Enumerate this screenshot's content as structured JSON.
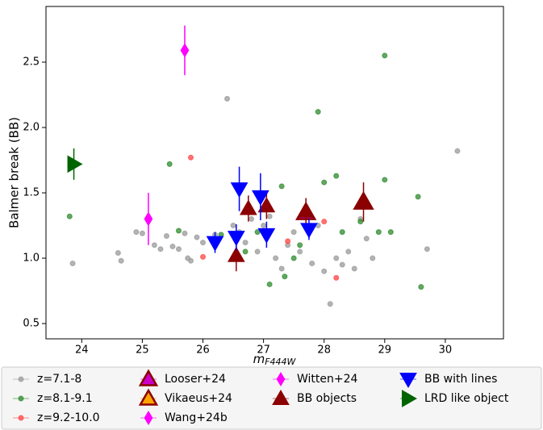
{
  "chart_data": {
    "type": "scatter",
    "xlabel": "m",
    "xlabel_sub": "F444W",
    "ylabel": "Balmer break (BB)",
    "xlim": [
      23.41,
      30.96
    ],
    "ylim": [
      0.383,
      2.926
    ],
    "xticks": [
      24,
      25,
      26,
      27,
      28,
      29,
      30
    ],
    "yticks": [
      0.5,
      {
        "value": 1.0,
        "label": "1.0"
      },
      1.5,
      {
        "value": 2.0,
        "label": "2.0"
      },
      2.5
    ],
    "legend": "bottom",
    "series": [
      {
        "name": "z=7.1-8",
        "color": "#999999",
        "marker": "circle",
        "size": 3,
        "x": [
          23.85,
          24.6,
          24.65,
          24.9,
          25.0,
          25.2,
          25.3,
          25.4,
          25.5,
          25.6,
          25.7,
          25.75,
          25.8,
          25.9,
          26.0,
          26.2,
          26.4,
          26.5,
          26.6,
          26.7,
          26.8,
          26.9,
          27.0,
          27.1,
          27.2,
          27.3,
          27.4,
          27.5,
          27.6,
          27.8,
          27.9,
          28.0,
          28.1,
          28.2,
          28.3,
          28.4,
          28.5,
          28.6,
          28.7,
          28.8,
          29.7,
          30.2
        ],
        "values": [
          0.96,
          1.04,
          0.98,
          1.2,
          1.19,
          1.1,
          1.07,
          1.17,
          1.09,
          1.07,
          1.19,
          1.0,
          0.98,
          1.16,
          1.12,
          1.18,
          2.22,
          1.25,
          1.2,
          1.12,
          1.3,
          1.05,
          1.25,
          1.32,
          1.0,
          0.92,
          1.1,
          1.2,
          1.05,
          0.96,
          1.25,
          0.9,
          0.65,
          1.0,
          0.95,
          1.05,
          0.92,
          1.3,
          1.15,
          1.0,
          1.07,
          1.82
        ]
      },
      {
        "name": "z=8.1-9.1",
        "color": "#2e8b2e",
        "marker": "circle",
        "size": 3,
        "x": [
          23.8,
          25.45,
          25.6,
          26.3,
          26.7,
          26.9,
          27.1,
          27.3,
          27.35,
          27.5,
          27.6,
          27.9,
          28.0,
          28.2,
          28.3,
          28.6,
          28.9,
          29.0,
          29.0,
          29.1,
          29.55,
          29.6
        ],
        "values": [
          1.32,
          1.72,
          1.21,
          1.18,
          1.05,
          1.2,
          0.8,
          1.55,
          0.86,
          1.0,
          1.1,
          2.12,
          1.58,
          1.63,
          1.2,
          1.28,
          1.2,
          2.55,
          1.6,
          1.2,
          1.47,
          0.78
        ]
      },
      {
        "name": "z=9.2-10.0",
        "color": "#ff4444",
        "marker": "circle",
        "size": 3,
        "x": [
          25.8,
          26.0,
          27.4,
          28.0,
          28.2,
          28.7
        ],
        "values": [
          1.77,
          1.01,
          1.13,
          1.28,
          0.85,
          1.42
        ]
      },
      {
        "name": "Looser+24",
        "color": "#cc00cc",
        "edge": "#8b0000",
        "marker": "triangle-up",
        "size": 11,
        "x": [
          27.7
        ],
        "values": [
          1.35
        ]
      },
      {
        "name": "Vikaeus+24",
        "color": "#ffa500",
        "edge": "#8b0000",
        "marker": "triangle-up",
        "size": 11,
        "x": [
          28.65
        ],
        "values": [
          1.43
        ]
      },
      {
        "name": "Wang+24b",
        "color": "#ff00ff",
        "marker": "diamond",
        "size": 8,
        "x": [
          25.7
        ],
        "values": [
          2.59
        ],
        "yerr": [
          0.19
        ]
      },
      {
        "name": "Witten+24",
        "color": "#ff00ff",
        "marker": "diamond",
        "size": 8,
        "x": [
          25.1
        ],
        "values": [
          1.3
        ],
        "yerr": [
          0.2
        ]
      },
      {
        "name": "BB objects",
        "color": "#8b0000",
        "marker": "triangle-up",
        "size": 10,
        "x": [
          26.55,
          26.75,
          27.05,
          27.7,
          28.65
        ],
        "values": [
          1.02,
          1.38,
          1.4,
          1.36,
          1.43
        ],
        "yerr": [
          0.12,
          0.1,
          0.1,
          0.1,
          0.15
        ]
      },
      {
        "name": "BB with lines",
        "color": "#0000ff",
        "marker": "triangle-down",
        "size": 10,
        "x": [
          26.2,
          26.55,
          26.6,
          26.95,
          27.05,
          27.75
        ],
        "values": [
          1.12,
          1.16,
          1.53,
          1.47,
          1.18,
          1.22
        ],
        "yerr": [
          0.08,
          0.1,
          0.17,
          0.18,
          0.1,
          0.08
        ]
      },
      {
        "name": "LRD like object",
        "color": "#006400",
        "marker": "triangle-right",
        "size": 10,
        "x": [
          23.87
        ],
        "values": [
          1.72
        ],
        "yerr": [
          0.12
        ]
      }
    ]
  }
}
